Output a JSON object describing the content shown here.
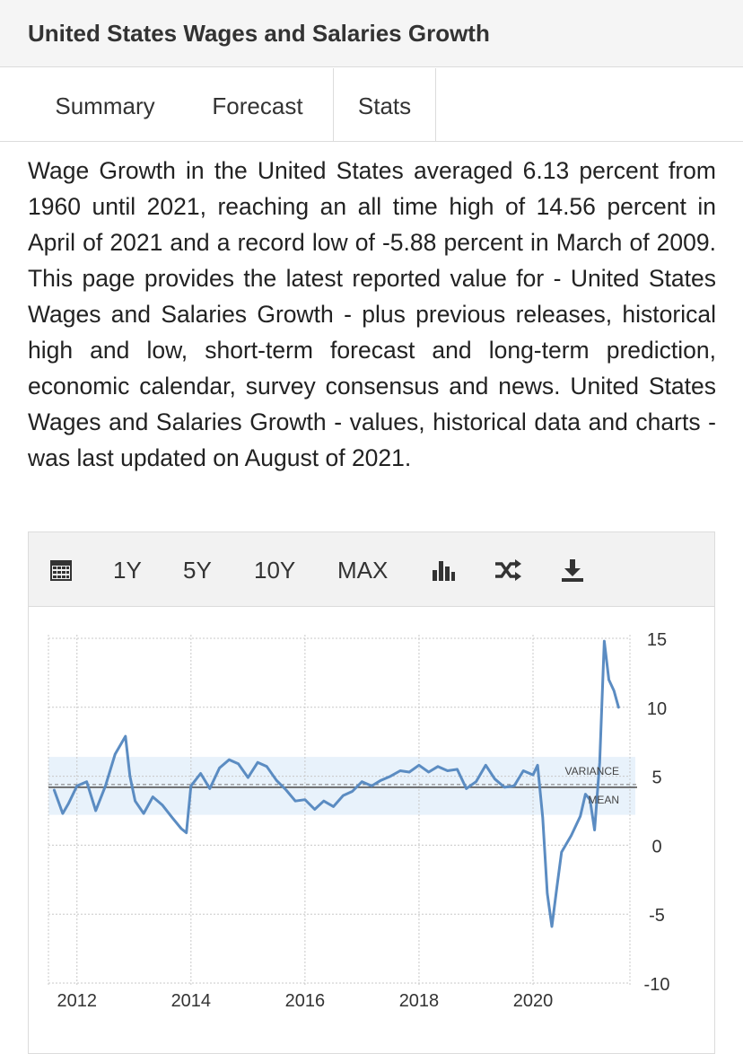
{
  "header": {
    "title": "United States Wages and Salaries Growth"
  },
  "tabs": [
    {
      "label": "Summary"
    },
    {
      "label": "Forecast"
    },
    {
      "label": "Stats"
    }
  ],
  "description": "Wage Growth in the United States averaged 6.13 percent from 1960 until 2021, reaching an all time high of 14.56 percent in April of 2021 and a record low of -5.88 percent in March of 2009. This page provides the latest reported value for - United States Wages and Salaries Growth - plus previous releases, historical high and low, short-term forecast and long-term prediction, economic calendar, survey consensus and news. United States Wages and Salaries Growth - values, historical data and charts - was last updated on August of 2021.",
  "toolbar": {
    "calendar_icon": "calendar-icon",
    "range_1y": "1Y",
    "range_5y": "5Y",
    "range_10y": "10Y",
    "range_max": "MAX",
    "bar_chart_icon": "bar-chart-icon",
    "shuffle_icon": "shuffle-icon",
    "download_icon": "download-icon"
  },
  "colors": {
    "line": "#5b8cc2",
    "variance_band": "#e8f2fb",
    "mean_line": "#555555",
    "grid": "#c8c8c8"
  },
  "chart_data": {
    "type": "line",
    "xlim": [
      2011.5,
      2021.7
    ],
    "ylim": [
      -10,
      15
    ],
    "x_ticks": [
      2012,
      2014,
      2016,
      2018,
      2020
    ],
    "x_tick_labels": [
      "2012",
      "2014",
      "2016",
      "2018",
      "2020"
    ],
    "y_ticks": [
      15,
      10,
      5,
      0,
      -5,
      -10
    ],
    "y_tick_labels": [
      "15",
      "10",
      "5",
      "0",
      "-5",
      "-10"
    ],
    "y_axis_side": "right",
    "grid": true,
    "mean": 4.2,
    "variance_band": [
      2.2,
      6.4
    ],
    "mean_label": "MEAN",
    "variance_label": "VARIANCE",
    "series": [
      {
        "x": [
          2011.6,
          2011.75,
          2011.85,
          2012.0,
          2012.17,
          2012.33,
          2012.5,
          2012.67,
          2012.85,
          2012.93,
          2013.02,
          2013.17,
          2013.33,
          2013.5,
          2013.67,
          2013.83,
          2013.92,
          2014.0,
          2014.17,
          2014.33,
          2014.5,
          2014.67,
          2014.83,
          2015.0,
          2015.17,
          2015.33,
          2015.5,
          2015.67,
          2015.83,
          2016.0,
          2016.17,
          2016.33,
          2016.5,
          2016.67,
          2016.83,
          2017.0,
          2017.17,
          2017.33,
          2017.5,
          2017.67,
          2017.83,
          2018.0,
          2018.17,
          2018.33,
          2018.5,
          2018.67,
          2018.83,
          2019.0,
          2019.17,
          2019.33,
          2019.5,
          2019.67,
          2019.83,
          2020.0,
          2020.08,
          2020.17,
          2020.25,
          2020.33,
          2020.42,
          2020.5,
          2020.67,
          2020.83,
          2020.92,
          2021.0,
          2021.08,
          2021.17,
          2021.25,
          2021.33,
          2021.42,
          2021.5
        ],
        "y": [
          4.0,
          2.3,
          3.0,
          4.3,
          4.6,
          2.5,
          4.3,
          6.6,
          7.9,
          5.0,
          3.2,
          2.3,
          3.5,
          2.9,
          2.0,
          1.2,
          0.9,
          4.3,
          5.2,
          4.1,
          5.6,
          6.2,
          5.9,
          4.9,
          6.0,
          5.7,
          4.7,
          4.0,
          3.2,
          3.3,
          2.6,
          3.2,
          2.8,
          3.6,
          3.9,
          4.6,
          4.3,
          4.7,
          5.0,
          5.4,
          5.3,
          5.8,
          5.3,
          5.7,
          5.4,
          5.5,
          4.1,
          4.6,
          5.8,
          4.8,
          4.2,
          4.3,
          5.4,
          5.1,
          5.8,
          2.0,
          -3.5,
          -5.9,
          -3.0,
          -0.5,
          0.7,
          2.1,
          3.7,
          3.3,
          1.1,
          6.0,
          14.8,
          12.0,
          11.2,
          10.0
        ]
      }
    ]
  }
}
